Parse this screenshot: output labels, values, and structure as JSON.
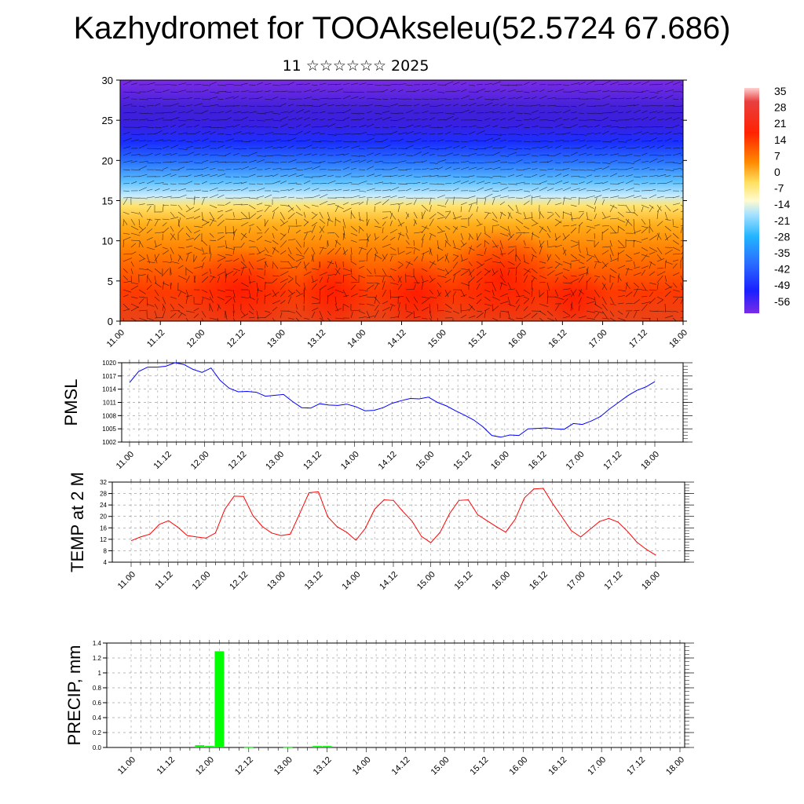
{
  "title": "Kazhydromet for TOOAkseleu(52.5724 67.686)",
  "subtitle": "11 ☆☆☆☆☆☆ 2025",
  "chart_data": [
    {
      "type": "heatmap",
      "ylim": [
        0,
        30
      ],
      "yticks": [
        "0",
        "5",
        "10",
        "15",
        "20",
        "25",
        "30"
      ],
      "x_tick_labels": [
        "11.00",
        "11.12",
        "12.00",
        "12.12",
        "13.00",
        "13.12",
        "14.00",
        "14.12",
        "15.00",
        "15.12",
        "16.00",
        "16.12",
        "17.00",
        "17.12",
        "18.00"
      ],
      "overlay": "wind vectors",
      "colorbar_labels": [
        "35",
        "28",
        "21",
        "14",
        "7",
        "0",
        "-7",
        "-14",
        "-21",
        "-28",
        "-35",
        "-42",
        "-49",
        "-56"
      ],
      "colors": {
        "warm": "#ff2a00",
        "orange": "#ff9a00",
        "yellow": "#ffe86a",
        "cold_light": "#9ad8ff",
        "blue": "#1a3cff",
        "purple": "#7a2be6"
      }
    },
    {
      "type": "line",
      "ylabel": "PMSL",
      "ylim": [
        1002,
        1020
      ],
      "yticks": [
        "1002",
        "1005",
        "1008",
        "1011",
        "1014",
        "1017",
        "1020"
      ],
      "x_tick_labels": [
        "11.00",
        "11.12",
        "12.00",
        "12.12",
        "13.00",
        "13.12",
        "14.00",
        "14.12",
        "15.00",
        "15.12",
        "16.00",
        "16.12",
        "17.00",
        "17.12",
        "18.00"
      ],
      "color": "#0000ff",
      "values": [
        1015.5,
        1018,
        1019,
        1019,
        1019.2,
        1020,
        1019.6,
        1018.5,
        1017.8,
        1018.8,
        1016,
        1014.2,
        1013.4,
        1013.5,
        1013.3,
        1012.4,
        1012.6,
        1012.8,
        1011.2,
        1009.8,
        1009.7,
        1010.7,
        1010.4,
        1010.3,
        1010.6,
        1010,
        1009.1,
        1009.2,
        1009.8,
        1010.8,
        1011.4,
        1011.9,
        1011.8,
        1012.2,
        1011,
        1010.2,
        1009.1,
        1008.1,
        1007,
        1005.5,
        1003.5,
        1003.1,
        1003.6,
        1003.5,
        1005,
        1005.1,
        1005.2,
        1005,
        1004.9,
        1006.2,
        1006,
        1006.8,
        1007.8,
        1009.5,
        1011,
        1012.5,
        1013.7,
        1014.5,
        1015.7
      ]
    },
    {
      "type": "line",
      "ylabel": "TEMP at 2 M",
      "ylim": [
        4,
        32
      ],
      "yticks": [
        "4",
        "8",
        "12",
        "16",
        "20",
        "24",
        "28",
        "32"
      ],
      "x_tick_labels": [
        "11.00",
        "11.12",
        "12.00",
        "12.12",
        "13.00",
        "13.12",
        "14.00",
        "14.12",
        "15.00",
        "15.12",
        "16.00",
        "16.12",
        "17.00",
        "17.12",
        "18.00"
      ],
      "color": "#ff0000",
      "values": [
        11.5,
        12.8,
        13.8,
        17.2,
        18.5,
        16.2,
        13.3,
        12.8,
        12.4,
        14.2,
        22.5,
        27.1,
        27,
        20.3,
        16.5,
        14.2,
        13.3,
        13.8,
        21,
        28.3,
        28.6,
        19.8,
        16.4,
        14.5,
        11.7,
        15.8,
        22.5,
        25.8,
        25.6,
        21.8,
        18.3,
        13,
        10.8,
        14.5,
        21,
        25.6,
        25.8,
        20.6,
        18.5,
        16.4,
        14.5,
        19,
        26.5,
        29.6,
        29.8,
        24.5,
        19.8,
        15,
        12.8,
        15.5,
        18.2,
        19.3,
        18,
        14.8,
        11,
        8.5,
        6.5
      ]
    },
    {
      "type": "bar",
      "ylabel": "PRECIP, mm",
      "ylim": [
        0,
        1.4
      ],
      "yticks": [
        "0.0",
        "0.2",
        "0.4",
        "0.6",
        "0.8",
        "1",
        "1.2",
        "1.4"
      ],
      "x_tick_labels": [
        "11.00",
        "11.12",
        "12.00",
        "12.12",
        "13.00",
        "13.12",
        "14.00",
        "14.12",
        "15.00",
        "15.12",
        "16.00",
        "16.12",
        "17.00",
        "17.12",
        "18.00"
      ],
      "color": "#00ff00",
      "values": [
        0,
        0,
        0,
        0,
        0,
        0,
        0,
        0.03,
        0.02,
        1.29,
        0,
        0,
        0.01,
        0,
        0,
        0,
        0.01,
        0,
        0,
        0.02,
        0.02,
        0,
        0,
        0,
        0,
        0,
        0,
        0,
        0,
        0,
        0,
        0,
        0,
        0,
        0,
        0,
        0,
        0,
        0,
        0,
        0,
        0,
        0,
        0,
        0,
        0,
        0,
        0,
        0,
        0,
        0,
        0,
        0,
        0,
        0,
        0,
        0
      ]
    }
  ]
}
